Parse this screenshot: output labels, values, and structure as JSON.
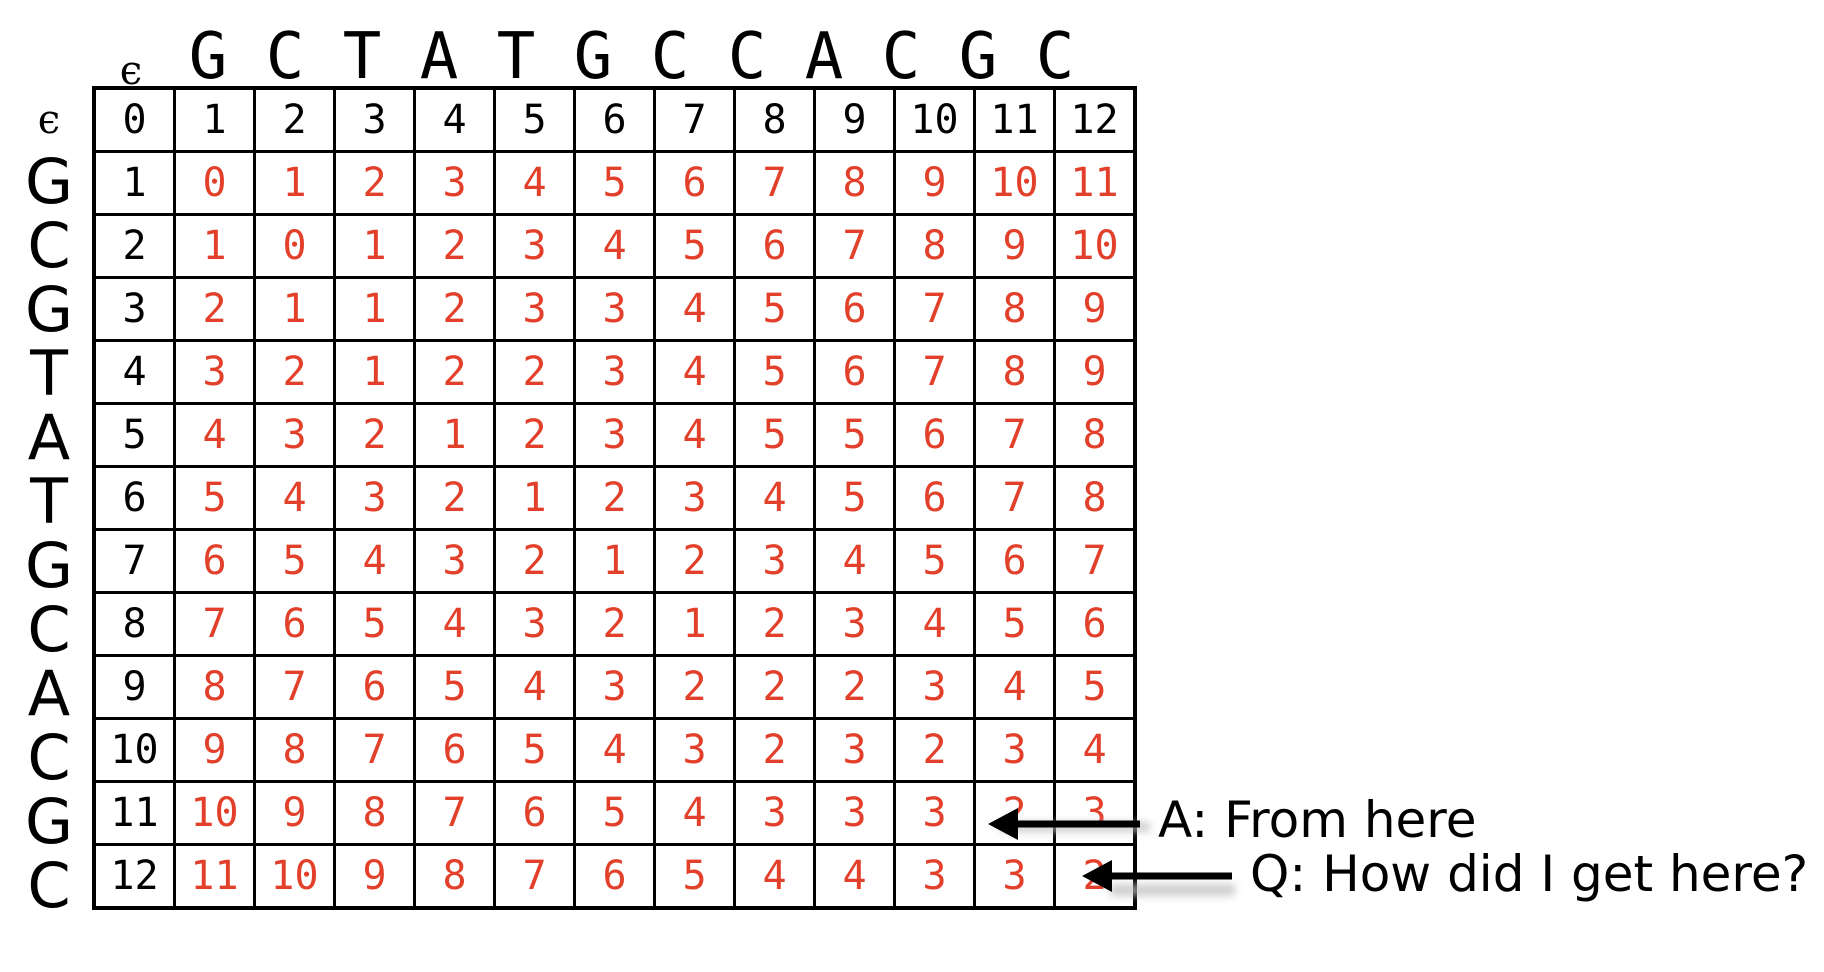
{
  "epsilon": "ϵ",
  "columns": [
    "G",
    "C",
    "T",
    "A",
    "T",
    "G",
    "C",
    "C",
    "A",
    "C",
    "G",
    "C"
  ],
  "rows": [
    "G",
    "C",
    "G",
    "T",
    "A",
    "T",
    "G",
    "C",
    "A",
    "C",
    "G",
    "C"
  ],
  "colors": {
    "base_values": "#000000",
    "filled_values": "#e2402a",
    "grid": "#000000"
  },
  "matrix": [
    [
      "0",
      "1",
      "2",
      "3",
      "4",
      "5",
      "6",
      "7",
      "8",
      "9",
      "10",
      "11",
      "12"
    ],
    [
      "1",
      "0",
      "1",
      "2",
      "3",
      "4",
      "5",
      "6",
      "7",
      "8",
      "9",
      "10",
      "11"
    ],
    [
      "2",
      "1",
      "0",
      "1",
      "2",
      "3",
      "4",
      "5",
      "6",
      "7",
      "8",
      "9",
      "10"
    ],
    [
      "3",
      "2",
      "1",
      "1",
      "2",
      "3",
      "3",
      "4",
      "5",
      "6",
      "7",
      "8",
      "9"
    ],
    [
      "4",
      "3",
      "2",
      "1",
      "2",
      "2",
      "3",
      "4",
      "5",
      "6",
      "7",
      "8",
      "9"
    ],
    [
      "5",
      "4",
      "3",
      "2",
      "1",
      "2",
      "3",
      "4",
      "5",
      "5",
      "6",
      "7",
      "8"
    ],
    [
      "6",
      "5",
      "4",
      "3",
      "2",
      "1",
      "2",
      "3",
      "4",
      "5",
      "6",
      "7",
      "8"
    ],
    [
      "7",
      "6",
      "5",
      "4",
      "3",
      "2",
      "1",
      "2",
      "3",
      "4",
      "5",
      "6",
      "7"
    ],
    [
      "8",
      "7",
      "6",
      "5",
      "4",
      "3",
      "2",
      "1",
      "2",
      "3",
      "4",
      "5",
      "6"
    ],
    [
      "9",
      "8",
      "7",
      "6",
      "5",
      "4",
      "3",
      "2",
      "2",
      "2",
      "3",
      "4",
      "5"
    ],
    [
      "10",
      "9",
      "8",
      "7",
      "6",
      "5",
      "4",
      "3",
      "2",
      "3",
      "2",
      "3",
      "4"
    ],
    [
      "11",
      "10",
      "9",
      "8",
      "7",
      "6",
      "5",
      "4",
      "3",
      "3",
      "3",
      "2",
      "3"
    ],
    [
      "12",
      "11",
      "10",
      "9",
      "8",
      "7",
      "6",
      "5",
      "4",
      "4",
      "3",
      "3",
      "2"
    ]
  ],
  "annotations": {
    "answer_label": "A: From here",
    "question_label": "Q: How did I get here?"
  }
}
